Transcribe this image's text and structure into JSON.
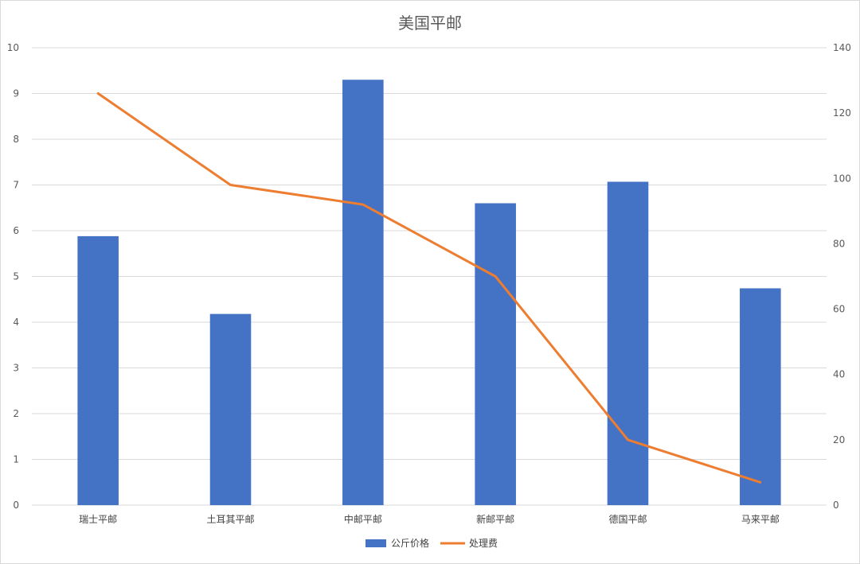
{
  "chart_data": {
    "type": "bar",
    "title": "美国平邮",
    "categories": [
      "瑞士平邮",
      "土耳其平邮",
      "中邮平邮",
      "新邮平邮",
      "德国平邮",
      "马来平邮"
    ],
    "series": [
      {
        "name": "公斤价格",
        "type": "bar",
        "axis": "left",
        "color": "#4472c4",
        "values": [
          5.88,
          4.18,
          9.3,
          6.6,
          7.07,
          4.74
        ]
      },
      {
        "name": "处理费",
        "type": "line",
        "axis": "right",
        "color": "#ed7d31",
        "values": [
          126,
          98,
          92,
          70,
          20,
          7
        ]
      }
    ],
    "y_left": {
      "min": 0,
      "max": 10,
      "ticks": [
        0,
        1,
        2,
        3,
        4,
        5,
        6,
        7,
        8,
        9,
        10
      ]
    },
    "y_right": {
      "min": 0,
      "max": 140,
      "ticks": [
        0,
        20,
        40,
        60,
        80,
        100,
        120,
        140
      ]
    },
    "grid": true,
    "legend_position": "bottom"
  }
}
